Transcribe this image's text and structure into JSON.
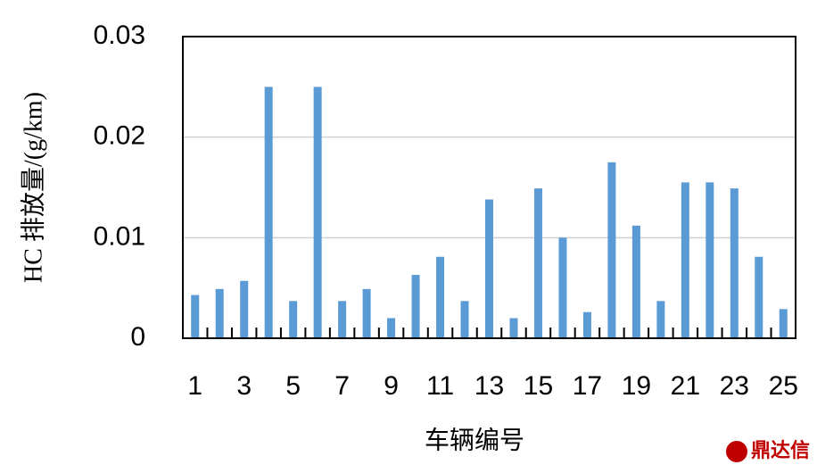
{
  "chart_data": {
    "type": "bar",
    "y_label": "HC 排放量/(g/km)",
    "x_label": "车辆编号",
    "categories": [
      "1",
      null,
      "3",
      null,
      "5",
      null,
      "7",
      null,
      "9",
      null,
      "11",
      null,
      "13",
      null,
      "15",
      null,
      "17",
      null,
      "19",
      null,
      "21",
      null,
      "23",
      null,
      "25"
    ],
    "values": [
      0.0043,
      0.0049,
      0.0057,
      0.025,
      0.0037,
      0.025,
      0.0037,
      0.0049,
      0.002,
      0.0063,
      0.0081,
      0.0037,
      0.0138,
      0.002,
      0.0149,
      0.01,
      0.0026,
      0.0175,
      0.0112,
      0.0037,
      0.0155,
      0.0155,
      0.0149,
      0.0081,
      0.0029
    ],
    "color": "#5b9bd5",
    "ylim": [
      0,
      0.03
    ],
    "yticks": [
      0,
      0.01,
      0.02,
      0.03
    ],
    "grid": true
  },
  "watermark": "鼎达信"
}
